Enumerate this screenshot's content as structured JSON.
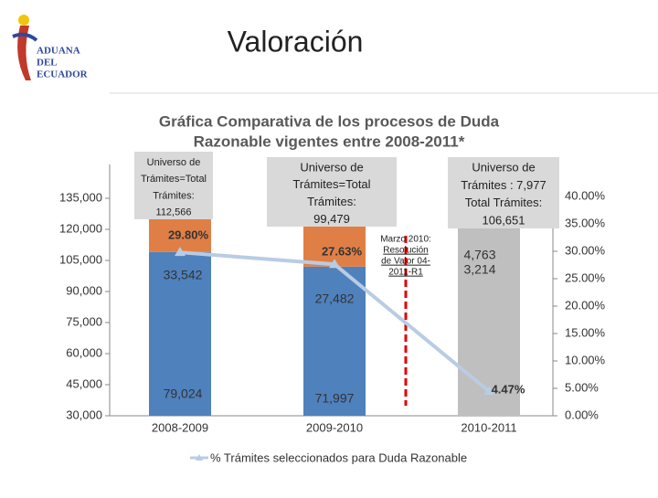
{
  "header": {
    "logo": [
      "ADUANA",
      "DEL",
      "ECUADOR"
    ],
    "title": "Valoración"
  },
  "chart_data": {
    "type": "bar",
    "title": [
      "Gráfica Comparativa de los procesos de Duda",
      "Razonable vigentes entre 2008-2011*"
    ],
    "categories": [
      "2008-2009",
      "2009-2010",
      "2010-2011"
    ],
    "series": [
      {
        "color": "#bfbfbf",
        "values": [
          null,
          null,
          98674
        ]
      },
      {
        "color": "#4f81bd",
        "values": [
          79024,
          71997,
          3214
        ],
        "value_labels": [
          "79,024",
          "71,997",
          "3,214"
        ]
      },
      {
        "color": "#e07f45",
        "values": [
          33542,
          27482,
          4763
        ],
        "value_labels": [
          "33,542",
          "27,482",
          "4,763"
        ]
      },
      {
        "name": "% Trámites seleccionados para Duda Razonable",
        "type": "line",
        "axis": "y2",
        "color": "#b8cce4",
        "values": [
          29.8,
          27.63,
          4.47
        ],
        "value_labels": [
          "29.80%",
          "27.63%",
          "4.47%"
        ]
      }
    ],
    "ylim": [
      30000,
      151324
    ],
    "yticks": [
      {
        "value": 30000,
        "label": "30,000"
      },
      {
        "value": 45000,
        "label": "45,000"
      },
      {
        "value": 60000,
        "label": "60,000"
      },
      {
        "value": 75000,
        "label": "75,000"
      },
      {
        "value": 90000,
        "label": "90,000"
      },
      {
        "value": 105000,
        "label": "105,000"
      },
      {
        "value": 120000,
        "label": "120,000"
      },
      {
        "value": 135000,
        "label": "135,000"
      }
    ],
    "y2lim": [
      0,
      45.83
    ],
    "y2ticks": [
      {
        "value": 0,
        "label": "0.00%"
      },
      {
        "value": 5,
        "label": "5.00%"
      },
      {
        "value": 10,
        "label": "10.00%"
      },
      {
        "value": 15,
        "label": "15.00%"
      },
      {
        "value": 20,
        "label": "20.00%"
      },
      {
        "value": 25,
        "label": "25.00%"
      },
      {
        "value": 30,
        "label": "30.00%"
      },
      {
        "value": 35,
        "label": "35.00%"
      },
      {
        "value": 40,
        "label": "40.00%"
      }
    ],
    "annotations": [
      [
        "Universo de",
        "Trámites=Total",
        "Trámites:",
        "112,566"
      ],
      [
        "Universo de",
        "Trámites=Total",
        "Trámites:",
        "99,479"
      ],
      [
        "Universo de",
        "Trámites : 7,977",
        "Total Trámites:",
        "106,651"
      ],
      [
        "Marzo 2010:",
        "Resolución",
        "de Valor 04-",
        "2011-R1"
      ]
    ]
  }
}
